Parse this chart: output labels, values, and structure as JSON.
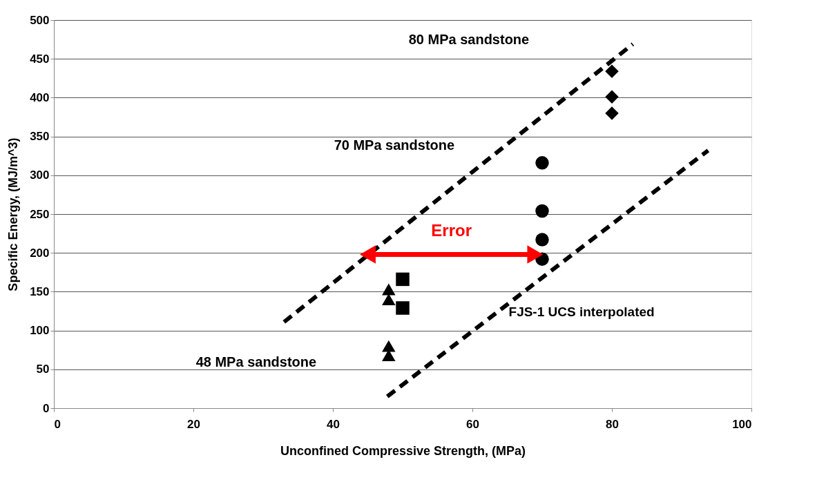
{
  "chart_data": {
    "type": "scatter",
    "xlabel": "Unconfined Compressive Strength, (MPa)",
    "ylabel": "Specific Energy, (MJ/m^3)",
    "xlim": [
      0,
      100
    ],
    "xticks": [
      0,
      20,
      40,
      60,
      80,
      100
    ],
    "ylim": [
      0,
      500
    ],
    "yticks": [
      0,
      50,
      100,
      150,
      200,
      250,
      300,
      350,
      400,
      450,
      500
    ],
    "grid": "y",
    "series": [
      {
        "marker": "diamond",
        "color": "#000000",
        "x": [
          80,
          80,
          80
        ],
        "values": [
          434,
          401,
          380
        ]
      },
      {
        "marker": "circle",
        "color": "#000000",
        "x": [
          70,
          70,
          70,
          70
        ],
        "values": [
          316,
          254,
          217,
          192
        ]
      },
      {
        "marker": "square",
        "color": "#000000",
        "x": [
          50,
          50
        ],
        "values": [
          166,
          129
        ]
      },
      {
        "marker": "triangle",
        "color": "#000000",
        "x": [
          48,
          48,
          48,
          48
        ],
        "values": [
          153,
          140,
          80,
          68
        ]
      },
      {
        "type": "line",
        "line_style": "dashed",
        "color": "#000000",
        "x": [
          33,
          83
        ],
        "values": [
          111,
          469
        ]
      },
      {
        "type": "line",
        "line_style": "dashed",
        "color": "#000000",
        "x": [
          47.8,
          93.8
        ],
        "values": [
          15,
          332
        ]
      },
      {
        "type": "line",
        "line_style": "solid",
        "marker": "triangle",
        "color": "#ff0000",
        "x": [
          45,
          69
        ],
        "values": [
          198,
          198
        ]
      }
    ],
    "annotations": [
      "80 MPa sandstone",
      "70 MPa sandstone",
      "FJS-1  UCS interpolated",
      "48 MPa sandstone",
      "Error"
    ]
  }
}
